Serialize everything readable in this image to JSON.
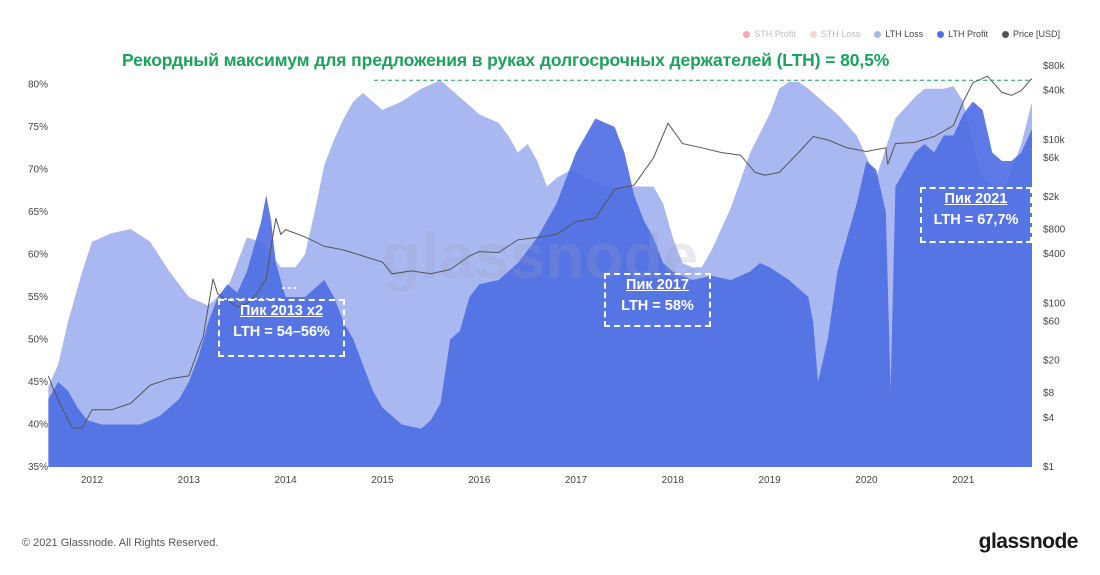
{
  "chart_data": {
    "type": "area",
    "title": "Рекордный максимум для предложения в руках долгосрочных держателей (LTH) = 80,5%",
    "x_ticks": [
      "2012",
      "2013",
      "2014",
      "2015",
      "2016",
      "2017",
      "2018",
      "2019",
      "2020",
      "2021"
    ],
    "y_left": {
      "ticks": [
        "35%",
        "40%",
        "45%",
        "50%",
        "55%",
        "60%",
        "65%",
        "70%",
        "75%",
        "80%"
      ],
      "range": [
        35,
        81
      ],
      "unit": "%"
    },
    "y_right": {
      "ticks": [
        "$1",
        "$4",
        "$8",
        "$20",
        "$60",
        "$100",
        "$400",
        "$800",
        "$2k",
        "$6k",
        "$10k",
        "$40k",
        "$80k"
      ],
      "range": [
        1,
        80000
      ],
      "scale": "log",
      "unit": "USD"
    },
    "grid": false,
    "legend_position": "top-right",
    "legend": [
      {
        "name": "STH Profit",
        "color": "#e04050",
        "faded": true
      },
      {
        "name": "STH Loss",
        "color": "#f0a0a8",
        "faded": true
      },
      {
        "name": "LTH Loss",
        "color": "#a9b8f1",
        "faded": false
      },
      {
        "name": "LTH Profit",
        "color": "#4f6fe4",
        "faded": false
      },
      {
        "name": "Price [USD]",
        "color": "#555555",
        "faded": false
      }
    ],
    "series": [
      {
        "name": "LTH Loss",
        "unit": "%",
        "x": [
          2011.55,
          2011.65,
          2011.75,
          2011.9,
          2012.0,
          2012.2,
          2012.4,
          2012.6,
          2012.8,
          2013.0,
          2013.2,
          2013.3,
          2013.4,
          2013.5,
          2013.6,
          2013.75,
          2013.85,
          2013.95,
          2014.1,
          2014.2,
          2014.3,
          2014.4,
          2014.5,
          2014.6,
          2014.7,
          2014.8,
          2014.9,
          2015.0,
          2015.2,
          2015.4,
          2015.6,
          2015.8,
          2016.0,
          2016.2,
          2016.3,
          2016.4,
          2016.5,
          2016.6,
          2016.7,
          2016.8,
          2016.95,
          2017.1,
          2017.3,
          2017.5,
          2017.6,
          2017.7,
          2017.8,
          2017.9,
          2018.0,
          2018.1,
          2018.2,
          2018.3,
          2018.4,
          2018.5,
          2018.6,
          2018.8,
          2019.0,
          2019.1,
          2019.2,
          2019.3,
          2019.4,
          2019.5,
          2019.7,
          2019.9,
          2020.1,
          2020.3,
          2020.5,
          2020.6,
          2020.7,
          2020.8,
          2020.9,
          2021.0,
          2021.1,
          2021.2,
          2021.3,
          2021.4,
          2021.5,
          2021.6,
          2021.7,
          2021.8
        ],
        "values": [
          44.5,
          47.0,
          52.0,
          58.0,
          61.5,
          62.5,
          63.0,
          61.5,
          58.0,
          55.0,
          54.0,
          55.0,
          56.0,
          59.0,
          62.0,
          61.5,
          60.0,
          58.5,
          58.5,
          60.0,
          65.0,
          70.5,
          73.5,
          76.0,
          78.0,
          79.0,
          78.0,
          77.0,
          78.0,
          79.5,
          80.5,
          78.5,
          76.5,
          75.5,
          74.0,
          72.0,
          73.0,
          71.0,
          68.0,
          69.0,
          70.0,
          69.0,
          68.0,
          68.0,
          68.0,
          68.0,
          68.0,
          66.0,
          62.0,
          59.0,
          58.5,
          58.5,
          60.5,
          63.0,
          65.5,
          72.0,
          76.5,
          79.5,
          80.3,
          80.3,
          79.5,
          78.5,
          76.5,
          74.0,
          69.0,
          76.0,
          78.5,
          79.5,
          79.5,
          79.5,
          79.8,
          78.0,
          73.0,
          69.0,
          68.0,
          67.0,
          70.0,
          73.0,
          77.5,
          80.5
        ]
      },
      {
        "name": "LTH Profit",
        "unit": "%",
        "x": [
          2011.55,
          2011.65,
          2011.75,
          2011.85,
          2011.95,
          2012.1,
          2012.3,
          2012.5,
          2012.7,
          2012.9,
          2013.0,
          2013.1,
          2013.2,
          2013.3,
          2013.4,
          2013.5,
          2013.6,
          2013.7,
          2013.75,
          2013.8,
          2013.85,
          2013.9,
          2014.0,
          2014.1,
          2014.2,
          2014.3,
          2014.4,
          2014.5,
          2014.6,
          2014.7,
          2014.8,
          2014.9,
          2015.0,
          2015.2,
          2015.4,
          2015.5,
          2015.6,
          2015.7,
          2015.8,
          2015.9,
          2016.0,
          2016.2,
          2016.4,
          2016.6,
          2016.8,
          2017.0,
          2017.2,
          2017.4,
          2017.5,
          2017.6,
          2017.7,
          2017.8,
          2017.9,
          2018.0,
          2018.2,
          2018.4,
          2018.6,
          2018.8,
          2018.9,
          2019.0,
          2019.2,
          2019.4,
          2019.45,
          2019.5,
          2019.6,
          2019.7,
          2019.8,
          2019.9,
          2020.0,
          2020.1,
          2020.2,
          2020.25,
          2020.3,
          2020.4,
          2020.5,
          2020.6,
          2020.7,
          2020.8,
          2020.9,
          2021.0,
          2021.1,
          2021.2,
          2021.3,
          2021.4,
          2021.5,
          2021.6,
          2021.7,
          2021.8
        ],
        "values": [
          43.0,
          45.0,
          44.0,
          42.0,
          40.5,
          40.0,
          40.0,
          40.0,
          41.0,
          43.0,
          45.0,
          48.0,
          52.0,
          55.0,
          56.5,
          55.5,
          58.0,
          62.0,
          64.0,
          67.0,
          64.0,
          59.0,
          55.0,
          55.0,
          55.0,
          56.0,
          57.0,
          55.0,
          52.0,
          50.0,
          47.0,
          44.0,
          42.0,
          40.0,
          39.5,
          40.5,
          42.5,
          50.0,
          51.0,
          55.0,
          56.5,
          57.0,
          59.0,
          62.0,
          66.0,
          72.0,
          76.0,
          75.0,
          72.0,
          67.0,
          64.0,
          62.0,
          59.0,
          58.0,
          57.0,
          57.5,
          57.0,
          58.0,
          59.0,
          58.5,
          57.0,
          55.0,
          52.0,
          45.0,
          50.0,
          58.0,
          62.0,
          66.0,
          71.0,
          70.0,
          65.0,
          44.0,
          68.0,
          70.0,
          72.0,
          73.0,
          72.0,
          74.0,
          74.0,
          76.5,
          78.0,
          77.0,
          72.0,
          71.0,
          71.0,
          72.0,
          74.5,
          77.0
        ]
      },
      {
        "name": "Price [USD]",
        "unit": "USD",
        "x": [
          2011.55,
          2011.6,
          2011.7,
          2011.8,
          2011.9,
          2012.0,
          2012.2,
          2012.4,
          2012.6,
          2012.8,
          2013.0,
          2013.15,
          2013.25,
          2013.3,
          2013.4,
          2013.5,
          2013.6,
          2013.7,
          2013.8,
          2013.85,
          2013.9,
          2013.95,
          2014.0,
          2014.2,
          2014.4,
          2014.6,
          2014.8,
          2015.0,
          2015.1,
          2015.3,
          2015.5,
          2015.7,
          2015.9,
          2016.0,
          2016.2,
          2016.4,
          2016.6,
          2016.8,
          2017.0,
          2017.2,
          2017.4,
          2017.6,
          2017.8,
          2017.95,
          2018.1,
          2018.3,
          2018.5,
          2018.7,
          2018.85,
          2018.95,
          2019.1,
          2019.3,
          2019.45,
          2019.6,
          2019.8,
          2020.0,
          2020.2,
          2020.22,
          2020.3,
          2020.5,
          2020.7,
          2020.9,
          2021.0,
          2021.1,
          2021.25,
          2021.4,
          2021.5,
          2021.6,
          2021.7,
          2021.8
        ],
        "values": [
          13,
          9,
          5,
          3,
          3,
          5,
          5,
          6,
          10,
          12,
          13,
          40,
          200,
          130,
          110,
          90,
          100,
          130,
          200,
          500,
          1100,
          700,
          800,
          650,
          500,
          450,
          380,
          320,
          230,
          250,
          230,
          260,
          380,
          430,
          420,
          600,
          640,
          700,
          1000,
          1100,
          2500,
          2800,
          6000,
          16000,
          9000,
          8000,
          7000,
          6500,
          4000,
          3700,
          4000,
          7000,
          11000,
          10000,
          8000,
          7200,
          8000,
          5000,
          9000,
          9300,
          11000,
          15000,
          29000,
          50000,
          60000,
          38000,
          35000,
          40000,
          55000,
          60000
        ]
      }
    ],
    "annotations": [
      {
        "line1": "Пик 2013 x2",
        "line2": "LTH = 54–56%"
      },
      {
        "line1": "Пик 2017",
        "line2": "LTH = 58%"
      },
      {
        "line1": "Пик 2021",
        "line2": "LTH = 67,7%"
      }
    ],
    "record_line": {
      "value": 80.5,
      "unit": "%"
    },
    "watermark": "glassnode"
  },
  "footer": {
    "copyright": "© 2021 Glassnode. All Rights Reserved.",
    "brand": "glassnode"
  }
}
